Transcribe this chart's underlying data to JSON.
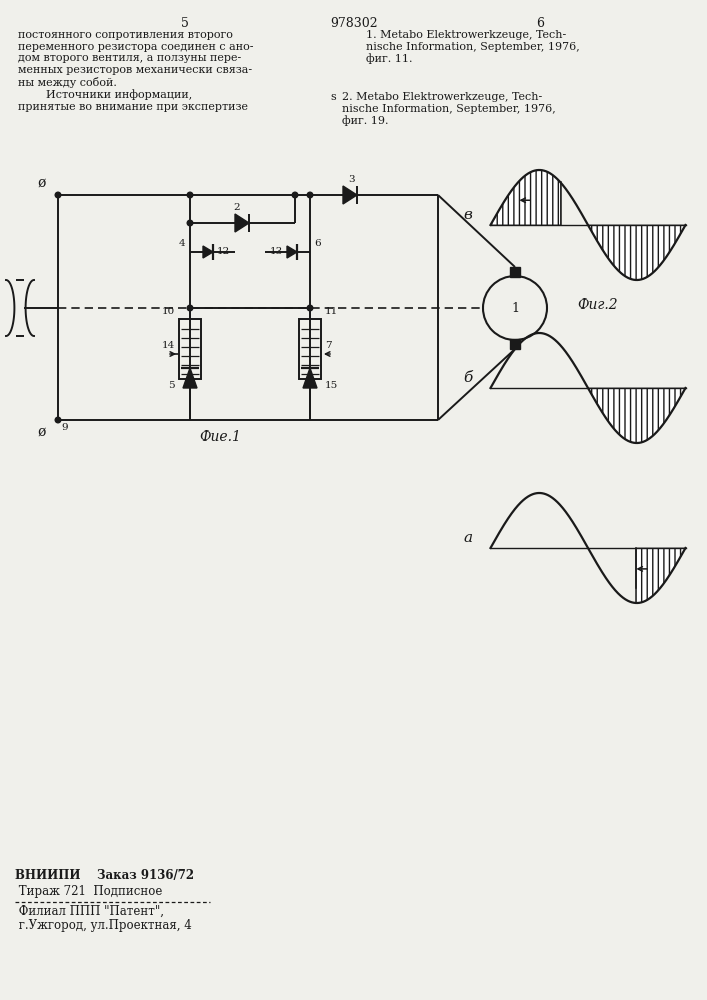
{
  "page_title": "978302",
  "page_left": "5",
  "page_right": "6",
  "text_left": "постоянного сопротивления второго\nпеременного резистора соединен с ано-\nдом второго вентиля, а ползуны пере-\nменных резисторов механически связа-\nны между собой.\n        Источники информации,\nпринятые во внимание при экспертизе",
  "fig1_label": "Фиe.1",
  "fig2_label": "Фиг.2",
  "label_a": "а",
  "label_b": "б",
  "label_v": "в",
  "bottom_text1": "ВНИИПИ    Заказ 9136/72",
  "bottom_text2": " Тираж 721  Подписное",
  "bottom_text3": " Филиал ППП \"Патент\",",
  "bottom_text4": " г.Ужгород, ул.Проектная, 4",
  "bg_color": "#f0f0eb",
  "line_color": "#1a1a1a"
}
